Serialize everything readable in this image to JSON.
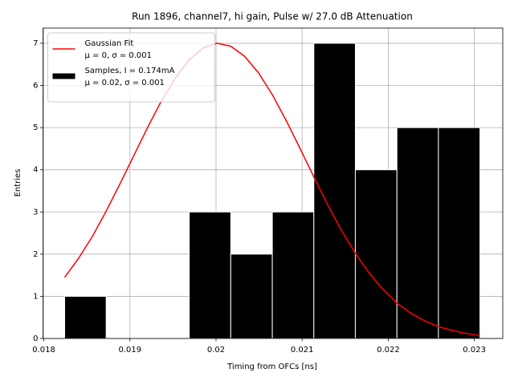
{
  "chart_data": {
    "type": "histogram",
    "title": "Run 1896, channel7, hi gain, Pulse w/ 27.0 dB Attenuation",
    "xlabel": "Timing from OFCs [ns]",
    "ylabel": "Entries",
    "xlim": [
      0.01799,
      0.02333
    ],
    "ylim": [
      0,
      7.36
    ],
    "xticks": [
      0.018,
      0.019,
      0.02,
      0.021,
      0.022,
      0.023
    ],
    "yticks": [
      0,
      1,
      2,
      3,
      4,
      5,
      6,
      7
    ],
    "grid": true,
    "legend": "upper left",
    "bins": [
      0.018242,
      0.018724,
      0.019207,
      0.019689,
      0.020171,
      0.020654,
      0.021136,
      0.021618,
      0.022101,
      0.022583,
      0.023065
    ],
    "series": [
      {
        "type": "line",
        "name": "Gaussian Fit\nμ = 0, σ = 0.001",
        "color": "#ff0000",
        "x": [
          0.018242,
          0.018403,
          0.018564,
          0.018724,
          0.018885,
          0.019046,
          0.019207,
          0.019367,
          0.019528,
          0.019689,
          0.01985,
          0.020011,
          0.020171,
          0.020332,
          0.020493,
          0.020654,
          0.020814,
          0.020975,
          0.021136,
          0.021297,
          0.021457,
          0.021618,
          0.021779,
          0.02194,
          0.0221,
          0.022261,
          0.022422,
          0.022583,
          0.022744,
          0.022904,
          0.023065
        ],
        "values": [
          1.45,
          1.9,
          2.42,
          3.02,
          3.67,
          4.34,
          5.01,
          5.64,
          6.18,
          6.61,
          6.89,
          7.0,
          6.93,
          6.69,
          6.3,
          5.78,
          5.17,
          4.51,
          3.83,
          3.17,
          2.56,
          2.02,
          1.55,
          1.16,
          0.84,
          0.6,
          0.42,
          0.28,
          0.19,
          0.12,
          0.07
        ]
      },
      {
        "type": "histogram",
        "name": "Samples, I = 0.174mA\nμ = 0.02, σ = 0.001",
        "color": "#000000",
        "values": [
          1,
          0,
          0,
          3,
          2,
          3,
          7,
          4,
          5,
          5
        ]
      }
    ]
  }
}
